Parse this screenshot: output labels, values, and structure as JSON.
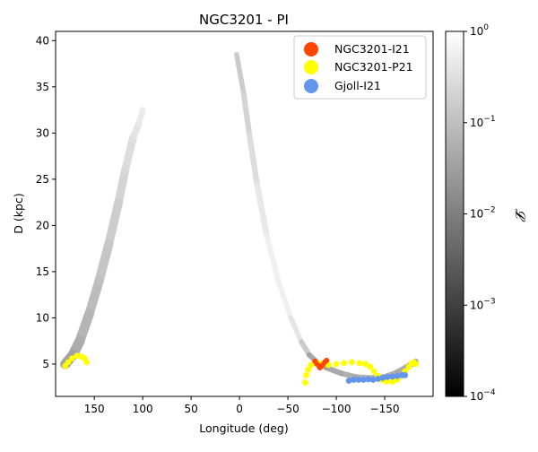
{
  "chart_data": {
    "type": "scatter",
    "title": "NGC3201 - PI",
    "xlabel": "Longitude (deg)",
    "ylabel": "D (kpc)",
    "xlim": [
      190,
      -200
    ],
    "ylim": [
      1.5,
      41
    ],
    "xticks": [
      150,
      100,
      50,
      0,
      -50,
      -100,
      -150
    ],
    "xtick_labels": [
      "150",
      "100",
      "50",
      "0",
      "−50",
      "−100",
      "−150"
    ],
    "yticks": [
      5,
      10,
      15,
      20,
      25,
      30,
      35,
      40
    ],
    "ytick_labels": [
      "5",
      "10",
      "15",
      "20",
      "25",
      "30",
      "35",
      "40"
    ],
    "grid": false,
    "legend_position": "top-right",
    "colorbar": {
      "label": "𝓛",
      "cmap": "gray",
      "scale": "log",
      "range": [
        0.0001,
        1
      ],
      "ticks": [
        {
          "value": 1,
          "base": "10",
          "exp": "0"
        },
        {
          "value": 0.1,
          "base": "10",
          "exp": "−1"
        },
        {
          "value": 0.01,
          "base": "10",
          "exp": "−2"
        },
        {
          "value": 0.001,
          "base": "10",
          "exp": "−3"
        },
        {
          "value": 0.0001,
          "base": "10",
          "exp": "−4"
        }
      ]
    },
    "series": [
      {
        "name": "NGC3201-I21",
        "color": "#ff4500",
        "points": [
          [
            -78,
            5.3
          ],
          [
            -80,
            5.0
          ],
          [
            -82,
            4.8
          ],
          [
            -84,
            4.7
          ],
          [
            -86,
            4.9
          ],
          [
            -88,
            5.2
          ],
          [
            -90,
            5.4
          ],
          [
            -83,
            4.6
          ]
        ]
      },
      {
        "name": "NGC3201-P21",
        "color": "#ffff00",
        "points": [
          [
            180,
            4.8
          ],
          [
            177,
            5.2
          ],
          [
            173,
            5.6
          ],
          [
            168,
            5.9
          ],
          [
            163,
            5.8
          ],
          [
            160,
            5.6
          ],
          [
            158,
            5.2
          ],
          [
            -68,
            3.0
          ],
          [
            -69,
            3.8
          ],
          [
            -71,
            4.4
          ],
          [
            -74,
            4.9
          ],
          [
            -78,
            5.2
          ],
          [
            -82,
            5.1
          ],
          [
            -86,
            4.9
          ],
          [
            -92,
            4.9
          ],
          [
            -100,
            5.0
          ],
          [
            -108,
            5.1
          ],
          [
            -116,
            5.2
          ],
          [
            -124,
            5.1
          ],
          [
            -130,
            5.0
          ],
          [
            -135,
            4.7
          ],
          [
            -139,
            4.2
          ],
          [
            -143,
            3.7
          ],
          [
            -147,
            3.3
          ],
          [
            -152,
            3.1
          ],
          [
            -158,
            3.1
          ],
          [
            -163,
            3.3
          ],
          [
            -167,
            3.7
          ],
          [
            -171,
            4.2
          ],
          [
            -175,
            4.7
          ],
          [
            -178,
            5.1
          ],
          [
            -180,
            5.2
          ],
          [
            -182,
            5.0
          ]
        ]
      },
      {
        "name": "Gjoll-I21",
        "color": "#6495ed",
        "points": [
          [
            -113,
            3.2
          ],
          [
            -118,
            3.3
          ],
          [
            -123,
            3.3
          ],
          [
            -128,
            3.3
          ],
          [
            -133,
            3.35
          ],
          [
            -138,
            3.3
          ],
          [
            -143,
            3.4
          ],
          [
            -148,
            3.5
          ],
          [
            -153,
            3.6
          ],
          [
            -158,
            3.65
          ],
          [
            -163,
            3.7
          ],
          [
            -168,
            3.8
          ],
          [
            -171,
            3.8
          ]
        ]
      }
    ],
    "likelihood_tracks": [
      {
        "name": "left-branch",
        "points": [
          [
            180,
            5.0
          ],
          [
            172,
            6.0
          ],
          [
            165,
            7.5
          ],
          [
            155,
            10.5
          ],
          [
            145,
            14.0
          ],
          [
            135,
            18.0
          ],
          [
            125,
            22.5
          ],
          [
            118,
            26.0
          ],
          [
            110,
            29.5
          ],
          [
            104,
            31.0
          ],
          [
            100,
            32.5
          ]
        ],
        "widths": [
          0.9,
          0.9,
          0.9,
          0.8,
          0.8,
          0.8,
          0.7,
          0.7,
          0.6,
          0.5,
          0.4
        ],
        "likelihood": [
          0.02,
          0.03,
          0.04,
          0.06,
          0.08,
          0.12,
          0.15,
          0.2,
          0.3,
          0.4,
          0.5
        ]
      },
      {
        "name": "right-branch",
        "points": [
          [
            3,
            38.5
          ],
          [
            -4,
            34.5
          ],
          [
            -10,
            30.0
          ],
          [
            -18,
            24.5
          ],
          [
            -28,
            19.0
          ],
          [
            -40,
            14.0
          ],
          [
            -53,
            10.0
          ],
          [
            -64,
            7.4
          ],
          [
            -72,
            6.0
          ],
          [
            -80,
            5.2
          ],
          [
            -90,
            4.6
          ],
          [
            -105,
            4.0
          ],
          [
            -120,
            3.6
          ],
          [
            -135,
            3.5
          ],
          [
            -150,
            3.6
          ],
          [
            -163,
            4.1
          ],
          [
            -175,
            4.8
          ],
          [
            -182,
            5.3
          ]
        ],
        "widths": [
          0.3,
          0.4,
          0.4,
          0.45,
          0.45,
          0.4,
          0.35,
          0.35,
          0.4,
          0.35,
          0.4,
          0.4,
          0.4,
          0.4,
          0.4,
          0.45,
          0.45,
          0.4
        ],
        "likelihood": [
          0.1,
          0.15,
          0.2,
          0.3,
          0.5,
          0.6,
          0.5,
          0.2,
          0.06,
          0.005,
          0.02,
          0.04,
          0.04,
          0.05,
          0.05,
          0.04,
          0.04,
          0.04
        ]
      }
    ]
  }
}
